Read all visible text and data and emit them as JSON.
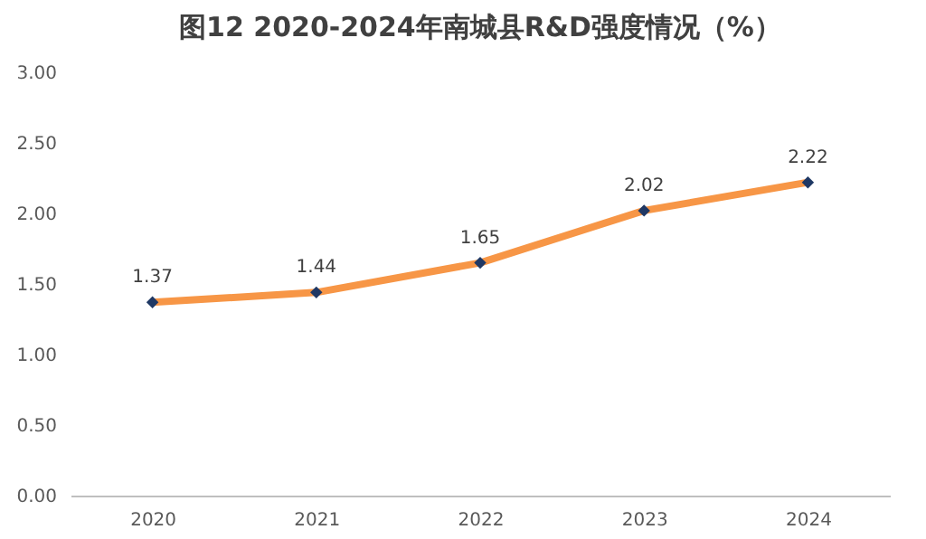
{
  "chart_data": {
    "type": "line",
    "title": "图12  2020-2024年南城县R&D强度情况（%）",
    "categories": [
      "2020",
      "2021",
      "2022",
      "2023",
      "2024"
    ],
    "series": [
      {
        "color": "#f79646",
        "values": [
          1.37,
          1.44,
          1.65,
          2.02,
          2.22
        ]
      }
    ],
    "ylim": [
      0,
      3
    ],
    "yticks": [
      {
        "value": 0,
        "label": "0.00"
      },
      {
        "value": 0.5,
        "label": "0.50"
      },
      {
        "value": 1,
        "label": "1.00"
      },
      {
        "value": 1.5,
        "label": "1.50"
      },
      {
        "value": 2,
        "label": "2.00"
      },
      {
        "value": 2.5,
        "label": "2.50"
      },
      {
        "value": 3,
        "label": "3.00"
      }
    ],
    "data_labels": true,
    "grid": false,
    "marker": "diamond",
    "line_style": "solid"
  }
}
